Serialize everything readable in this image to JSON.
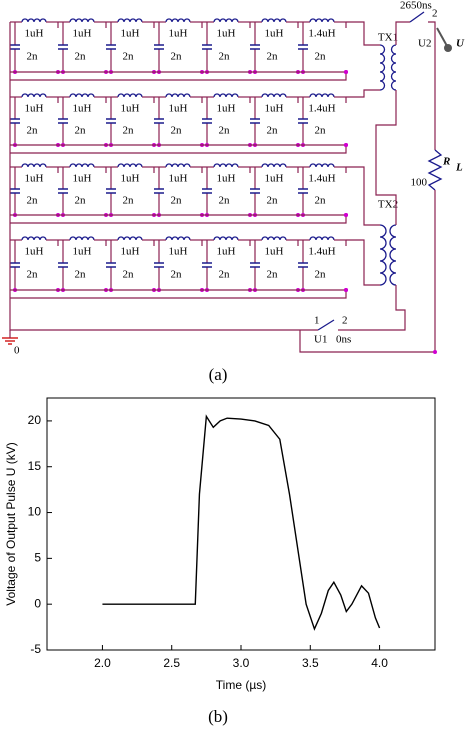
{
  "circuit": {
    "rows": [
      {
        "inductors": [
          "1uH",
          "1uH",
          "1uH",
          "1uH",
          "1uH",
          "1uH",
          "1.4uH"
        ],
        "capacitors": [
          "2n",
          "2n",
          "2n",
          "2n",
          "2n",
          "2n",
          "2n"
        ]
      },
      {
        "inductors": [
          "1uH",
          "1uH",
          "1uH",
          "1uH",
          "1uH",
          "1uH",
          "1.4uH"
        ],
        "capacitors": [
          "2n",
          "2n",
          "2n",
          "2n",
          "2n",
          "2n",
          "2n"
        ]
      },
      {
        "inductors": [
          "1uH",
          "1uH",
          "1uH",
          "1uH",
          "1uH",
          "1uH",
          "1.4uH"
        ],
        "capacitors": [
          "2n",
          "2n",
          "2n",
          "2n",
          "2n",
          "2n",
          "2n"
        ]
      },
      {
        "inductors": [
          "1uH",
          "1uH",
          "1uH",
          "1uH",
          "1uH",
          "1uH",
          "1.4uH"
        ],
        "capacitors": [
          "2n",
          "2n",
          "2n",
          "2n",
          "2n",
          "2n",
          "2n"
        ]
      }
    ],
    "transformers": [
      "TX1",
      "TX2"
    ],
    "switch_top": {
      "name": "U2",
      "time": "2650ns",
      "pin": "2"
    },
    "switch_bottom": {
      "name": "U1",
      "time": "0ns",
      "pin1": "1",
      "pin2": "2"
    },
    "output": "U",
    "load": {
      "name": "R",
      "subscript": "L",
      "value": "100"
    },
    "ground": "0"
  },
  "captions": [
    "(a)",
    "(b)"
  ],
  "chart_data": {
    "type": "line",
    "x_label": "Time (µs)",
    "y_label": "Voltage of Output Pulse U (kV)",
    "x": [
      2.0,
      2.3,
      2.67,
      2.7,
      2.75,
      2.8,
      2.85,
      2.9,
      3.0,
      3.1,
      3.2,
      3.28,
      3.35,
      3.42,
      3.47,
      3.53,
      3.58,
      3.63,
      3.67,
      3.72,
      3.76,
      3.8,
      3.87,
      3.92,
      3.97,
      4.0
    ],
    "values": [
      0,
      0,
      0,
      12,
      20.5,
      19.3,
      20.0,
      20.3,
      20.2,
      20.0,
      19.5,
      18.0,
      12.0,
      5.0,
      0,
      -2.7,
      -1.0,
      1.5,
      2.4,
      1.0,
      -0.8,
      0,
      2.0,
      1.2,
      -1.5,
      -2.6
    ],
    "color": "#000000",
    "xlim": [
      1.6,
      4.4
    ],
    "ylim": [
      -5,
      22.5
    ],
    "xticks": [
      {
        "value": 2.0,
        "label": "2.0"
      },
      {
        "value": 2.5,
        "label": "2.5"
      },
      {
        "value": 3.0,
        "label": "3.0"
      },
      {
        "value": 3.5,
        "label": "3.5"
      },
      {
        "value": 4.0,
        "label": "4.0"
      }
    ],
    "yticks": [
      -5,
      0,
      5,
      10,
      15,
      20
    ],
    "grid": false
  }
}
